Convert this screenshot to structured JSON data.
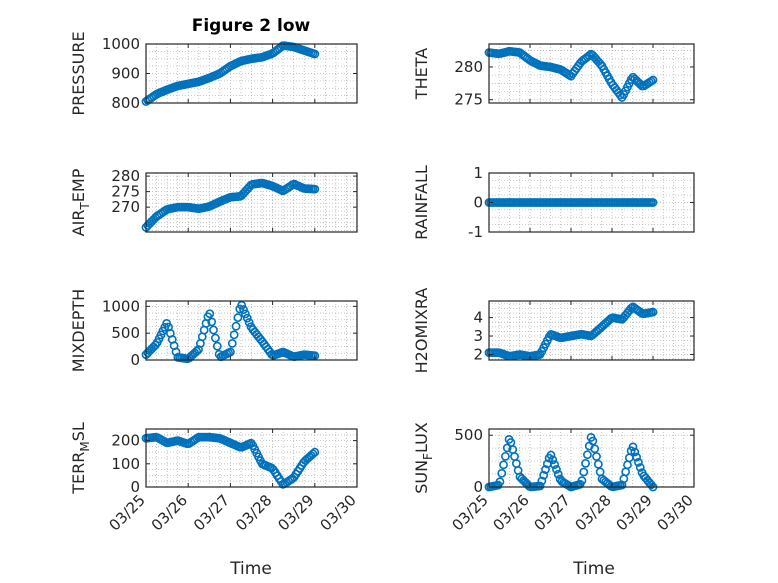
{
  "figure": {
    "title": "Figure 2 low",
    "xlabel": "Time"
  },
  "colors": {
    "marker": "#0072BD",
    "axes": "#262626",
    "grid": "#b8b8b8"
  },
  "chart_data": [
    {
      "id": "pressure",
      "type": "scatter",
      "ylabel": "PRESSURE",
      "ylim": [
        800,
        1000
      ],
      "yticks": [
        800,
        900,
        1000
      ],
      "xlim": [
        "03/25",
        "03/30"
      ],
      "xticks": [],
      "grid": true,
      "x": [
        "03/25 00:00",
        "03/25 06:00",
        "03/25 12:00",
        "03/25 18:00",
        "03/26 00:00",
        "03/26 06:00",
        "03/26 12:00",
        "03/26 18:00",
        "03/27 00:00",
        "03/27 06:00",
        "03/27 12:00",
        "03/27 18:00",
        "03/28 00:00",
        "03/28 06:00",
        "03/28 12:00",
        "03/28 18:00",
        "03/29 00:00"
      ],
      "y": [
        805,
        830,
        845,
        858,
        865,
        872,
        885,
        900,
        925,
        942,
        950,
        955,
        968,
        995,
        990,
        978,
        966
      ]
    },
    {
      "id": "theta",
      "type": "scatter",
      "ylabel": "THETA",
      "ylim": [
        274.5,
        283.5
      ],
      "yticks": [
        275,
        280
      ],
      "xlim": [
        "03/25",
        "03/30"
      ],
      "xticks": [],
      "grid": true,
      "x": [
        "03/25 00:00",
        "03/25 06:00",
        "03/25 12:00",
        "03/25 18:00",
        "03/26 00:00",
        "03/26 06:00",
        "03/26 12:00",
        "03/26 18:00",
        "03/27 00:00",
        "03/27 06:00",
        "03/27 12:00",
        "03/27 18:00",
        "03/28 00:00",
        "03/28 06:00",
        "03/28 12:00",
        "03/28 18:00",
        "03/29 00:00"
      ],
      "y": [
        282.2,
        282.0,
        282.4,
        282.2,
        281.0,
        280.2,
        280.0,
        279.6,
        278.6,
        280.8,
        282.0,
        280.2,
        277.4,
        275.3,
        278.5,
        277.0,
        278.0
      ]
    },
    {
      "id": "airtemp",
      "type": "scatter",
      "ylabel": "AIR",
      "ylabel_sub": "T",
      "ylabel_suffix": "EMP",
      "ylim": [
        262,
        281
      ],
      "yticks": [
        270,
        275,
        280
      ],
      "xlim": [
        "03/25",
        "03/30"
      ],
      "xticks": [],
      "grid": true,
      "x": [
        "03/25 00:00",
        "03/25 06:00",
        "03/25 12:00",
        "03/25 18:00",
        "03/26 00:00",
        "03/26 06:00",
        "03/26 12:00",
        "03/26 18:00",
        "03/27 00:00",
        "03/27 06:00",
        "03/27 12:00",
        "03/27 18:00",
        "03/28 00:00",
        "03/28 06:00",
        "03/28 12:00",
        "03/28 18:00",
        "03/29 00:00"
      ],
      "y": [
        263.5,
        267.0,
        269.3,
        270.0,
        270.0,
        269.5,
        270.2,
        271.8,
        273.2,
        273.5,
        277.3,
        277.8,
        276.8,
        275.2,
        277.5,
        276.0,
        275.8
      ]
    },
    {
      "id": "rainfall",
      "type": "scatter",
      "ylabel": "RAINFALL",
      "ylim": [
        -1,
        1
      ],
      "yticks": [
        -1,
        0,
        1
      ],
      "xlim": [
        "03/25",
        "03/30"
      ],
      "xticks": [],
      "grid": true,
      "x": [
        "03/25 00:00",
        "03/29 00:00"
      ],
      "y": [
        0,
        0
      ]
    },
    {
      "id": "mixdepth",
      "type": "scatter",
      "ylabel": "MIXDEPTH",
      "ylim": [
        0,
        1100
      ],
      "yticks": [
        0,
        500,
        1000
      ],
      "xlim": [
        "03/25",
        "03/30"
      ],
      "xticks": [],
      "grid": true,
      "x": [
        "03/25 00:00",
        "03/25 06:00",
        "03/25 12:00",
        "03/25 18:00",
        "03/26 00:00",
        "03/26 06:00",
        "03/26 12:00",
        "03/26 18:00",
        "03/27 00:00",
        "03/27 06:00",
        "03/27 12:00",
        "03/27 18:00",
        "03/28 00:00",
        "03/28 06:00",
        "03/28 12:00",
        "03/28 18:00",
        "03/29 00:00"
      ],
      "y": [
        100,
        300,
        700,
        50,
        20,
        200,
        900,
        50,
        150,
        1050,
        600,
        350,
        80,
        150,
        60,
        100,
        80
      ]
    },
    {
      "id": "h2omixra",
      "type": "scatter",
      "ylabel": "H2OMIXRA",
      "ylim": [
        1.7,
        4.9
      ],
      "yticks": [
        2,
        3,
        4
      ],
      "xlim": [
        "03/25",
        "03/30"
      ],
      "xticks": [],
      "grid": true,
      "x": [
        "03/25 00:00",
        "03/25 06:00",
        "03/25 12:00",
        "03/25 18:00",
        "03/26 00:00",
        "03/26 06:00",
        "03/26 12:00",
        "03/26 18:00",
        "03/27 00:00",
        "03/27 06:00",
        "03/27 12:00",
        "03/27 18:00",
        "03/28 00:00",
        "03/28 06:00",
        "03/28 12:00",
        "03/28 18:00",
        "03/29 00:00"
      ],
      "y": [
        2.1,
        2.1,
        1.9,
        2.0,
        1.9,
        2.0,
        3.1,
        2.9,
        3.0,
        3.1,
        3.0,
        3.5,
        4.0,
        3.9,
        4.6,
        4.2,
        4.3
      ]
    },
    {
      "id": "terr",
      "type": "scatter",
      "ylabel": "TERR",
      "ylabel_sub": "M",
      "ylabel_suffix": "SL",
      "ylim": [
        0,
        250
      ],
      "yticks": [
        0,
        100,
        200
      ],
      "xlim": [
        "03/25",
        "03/30"
      ],
      "xticks": [
        "03/25",
        "03/26",
        "03/27",
        "03/28",
        "03/29",
        "03/30"
      ],
      "grid": true,
      "x": [
        "03/25 00:00",
        "03/25 06:00",
        "03/25 12:00",
        "03/25 18:00",
        "03/26 00:00",
        "03/26 06:00",
        "03/26 12:00",
        "03/26 18:00",
        "03/27 00:00",
        "03/27 06:00",
        "03/27 12:00",
        "03/27 18:00",
        "03/28 00:00",
        "03/28 06:00",
        "03/28 12:00",
        "03/28 18:00",
        "03/29 00:00"
      ],
      "y": [
        210,
        215,
        190,
        200,
        185,
        215,
        215,
        210,
        190,
        170,
        190,
        100,
        80,
        10,
        40,
        110,
        150
      ]
    },
    {
      "id": "sunflux",
      "type": "scatter",
      "ylabel": "SUN",
      "ylabel_sub": "F",
      "ylabel_suffix": "LUX",
      "ylim": [
        0,
        560
      ],
      "yticks": [
        0,
        500
      ],
      "xlim": [
        "03/25",
        "03/30"
      ],
      "xticks": [
        "03/25",
        "03/26",
        "03/27",
        "03/28",
        "03/29",
        "03/30"
      ],
      "grid": true,
      "x": [
        "03/25 00:00",
        "03/25 06:00",
        "03/25 12:00",
        "03/25 18:00",
        "03/26 00:00",
        "03/26 06:00",
        "03/26 12:00",
        "03/26 18:00",
        "03/27 00:00",
        "03/27 06:00",
        "03/27 12:00",
        "03/27 18:00",
        "03/28 00:00",
        "03/28 06:00",
        "03/28 12:00",
        "03/28 18:00",
        "03/29 00:00"
      ],
      "y": [
        0,
        20,
        480,
        100,
        0,
        10,
        320,
        60,
        0,
        30,
        500,
        80,
        0,
        20,
        400,
        120,
        0
      ]
    }
  ]
}
